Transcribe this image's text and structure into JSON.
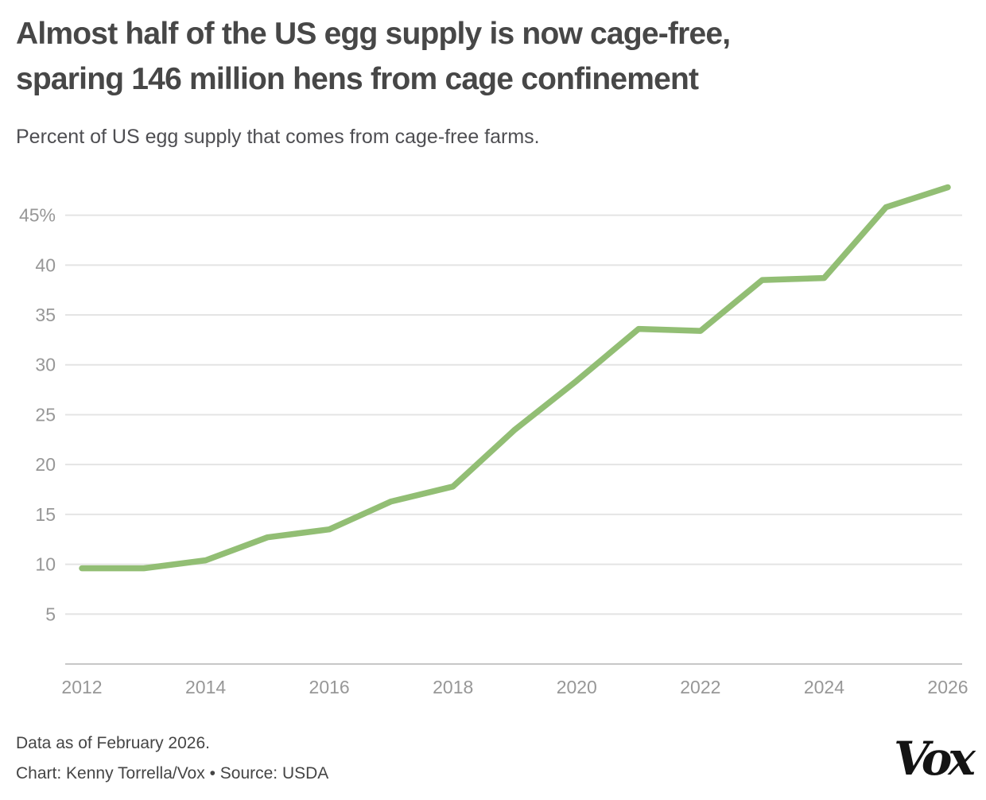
{
  "header": {
    "title_line1": "Almost half of the US egg supply is now cage-free,",
    "title_line2": "sparing 146 million hens from cage confinement",
    "subtitle": "Percent of US egg supply that comes from cage-free farms."
  },
  "chart_data": {
    "type": "line",
    "title": "Almost half of the US egg supply is now cage-free, sparing 146 million hens from cage confinement",
    "subtitle": "Percent of US egg supply that comes from cage-free farms.",
    "series_name": "Percent of US egg supply from cage-free farms",
    "x": [
      2012,
      2013,
      2014,
      2015,
      2016,
      2017,
      2018,
      2019,
      2020,
      2021,
      2022,
      2023,
      2024,
      2025,
      2026
    ],
    "values": [
      9.6,
      9.6,
      10.4,
      12.7,
      13.5,
      16.3,
      17.8,
      23.5,
      28.4,
      33.6,
      33.4,
      38.5,
      38.7,
      45.8,
      47.8
    ],
    "x_ticks": [
      2012,
      2014,
      2016,
      2018,
      2020,
      2022,
      2024,
      2026
    ],
    "y_ticks": [
      {
        "value": 5,
        "label": "5"
      },
      {
        "value": 10,
        "label": "10"
      },
      {
        "value": 15,
        "label": "15"
      },
      {
        "value": 20,
        "label": "20"
      },
      {
        "value": 25,
        "label": "25"
      },
      {
        "value": 30,
        "label": "30"
      },
      {
        "value": 35,
        "label": "35"
      },
      {
        "value": 40,
        "label": "40"
      },
      {
        "value": 45,
        "label": "45%"
      }
    ],
    "xlim": [
      2012,
      2026
    ],
    "ylim": [
      0,
      48.5
    ],
    "grid": "horizontal",
    "legend": "none"
  },
  "footer": {
    "note": "Data as of February 2026.",
    "credit": "Chart: Kenny Torrella/Vox • Source: USDA",
    "logo": "Vox"
  },
  "colors": {
    "background": "#ffffff",
    "line": "#92be74",
    "grid": "#e4e4e4",
    "axis_line": "#c7c7c7",
    "tick_text": "#979797",
    "title": "#474747",
    "subtitle": "#4e4e52",
    "footer_text": "#454545",
    "logo": "#141414"
  }
}
